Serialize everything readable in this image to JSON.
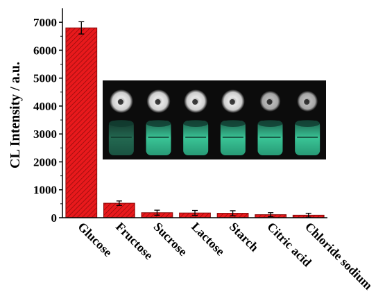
{
  "chart_data": {
    "type": "bar",
    "categories": [
      "Glucose",
      "Fructose",
      "Sucrose",
      "Lactose",
      "Starch",
      "Citric acid",
      "Chloride sodium"
    ],
    "values": [
      6800,
      520,
      180,
      170,
      160,
      110,
      90
    ],
    "errors": [
      220,
      80,
      90,
      90,
      90,
      70,
      70
    ],
    "xlabel": "",
    "ylabel": "CL Intensity / a.u.",
    "ylim": [
      0,
      7500
    ],
    "yticks": [
      0,
      1000,
      2000,
      3000,
      4000,
      5000,
      6000,
      7000
    ],
    "bar_color": "#e8191c",
    "hatch_color": "#8a0a0a",
    "grid": false,
    "inset_image": {
      "description_colors": {
        "background": "#0c0c0c",
        "top_row": "#e6e6e6",
        "bottom_row": "#3fd9a5"
      }
    }
  }
}
